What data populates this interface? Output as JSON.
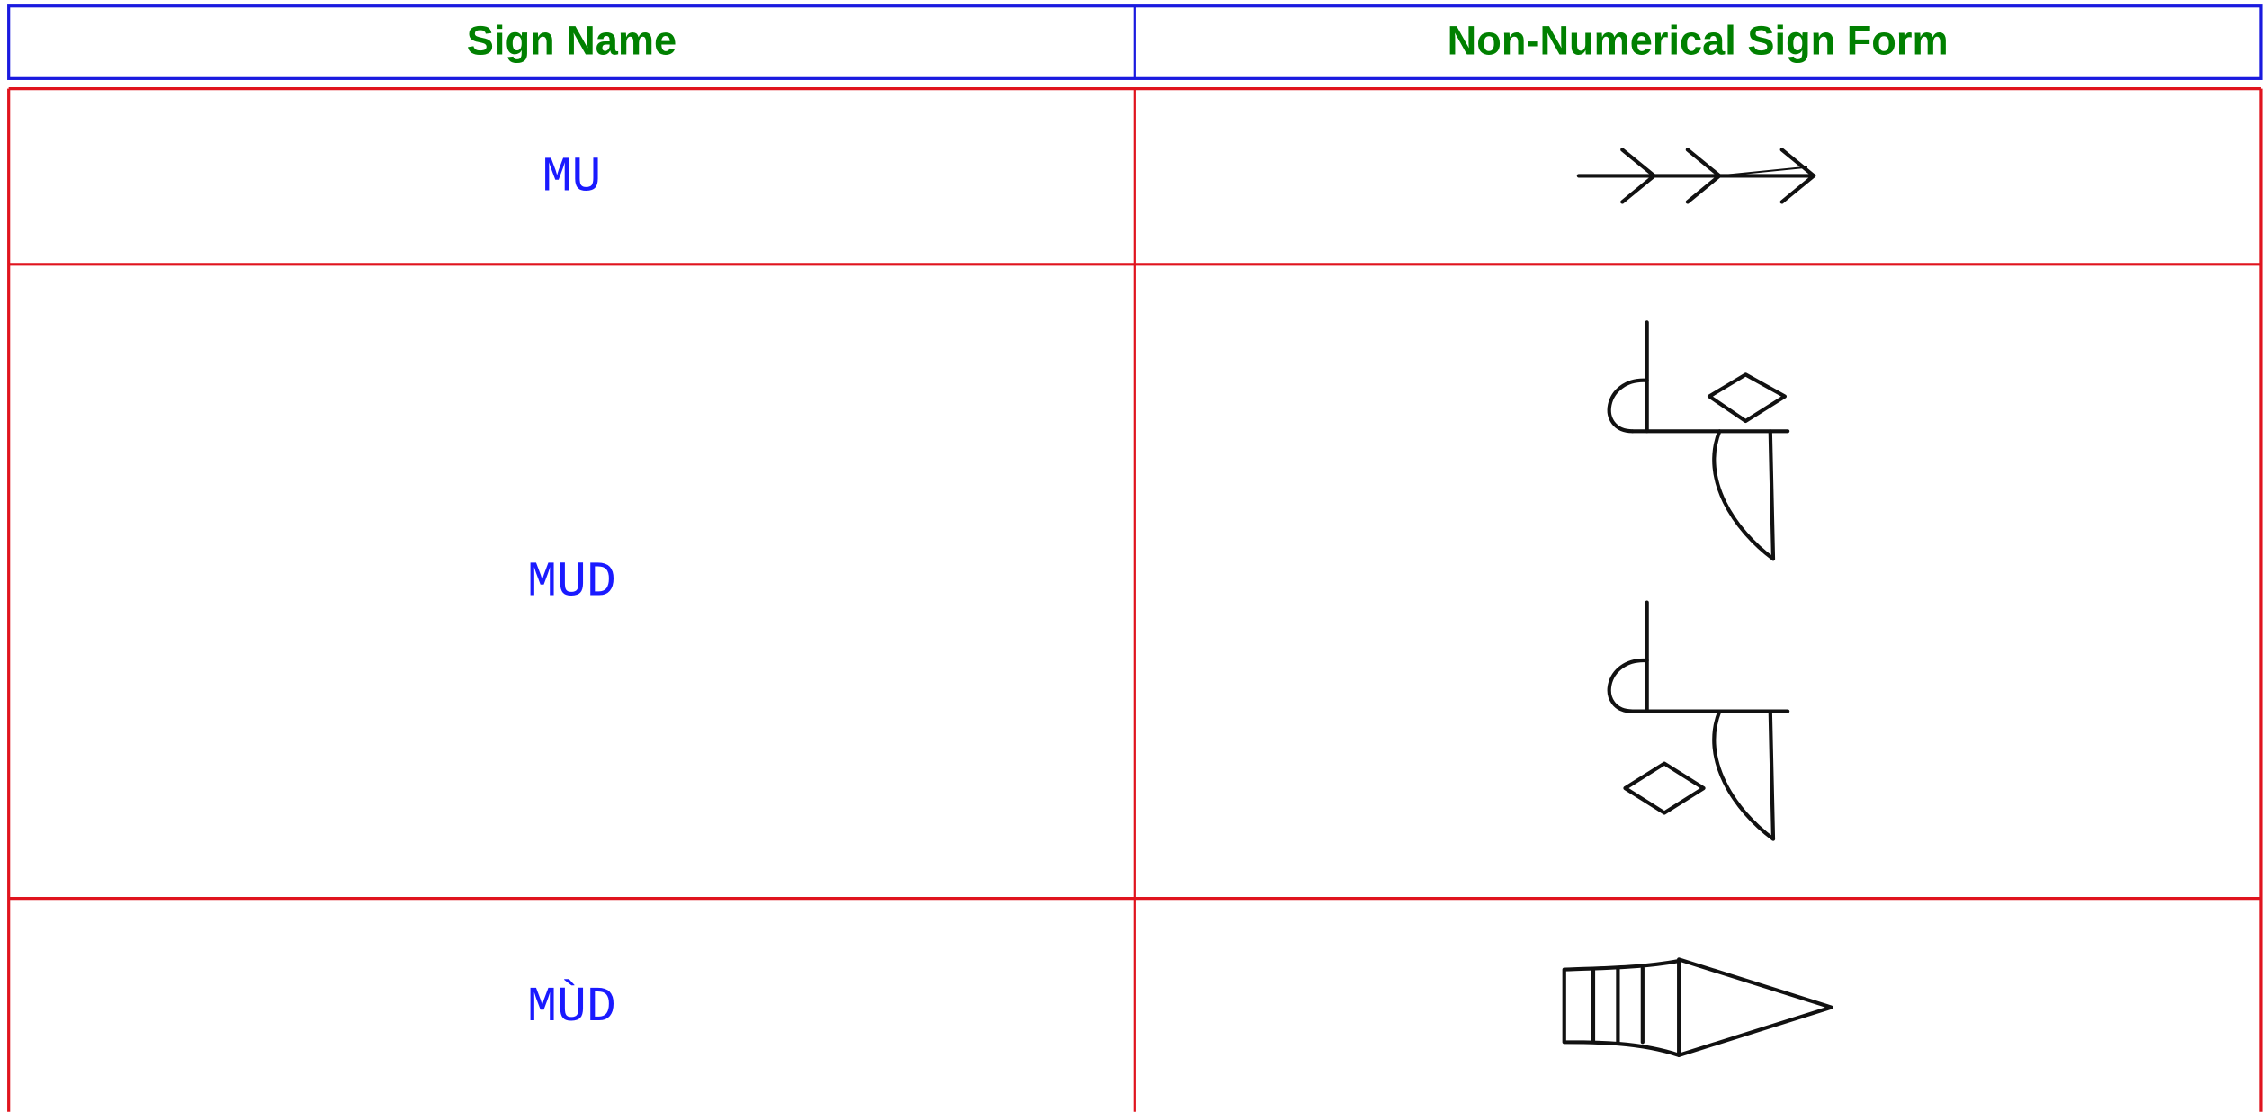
{
  "table": {
    "columns": [
      "Sign Name",
      "Non-Numerical Sign Form"
    ],
    "rows": [
      [
        "MU"
      ],
      [
        "MUD"
      ],
      [
        "MÙD"
      ]
    ]
  }
}
